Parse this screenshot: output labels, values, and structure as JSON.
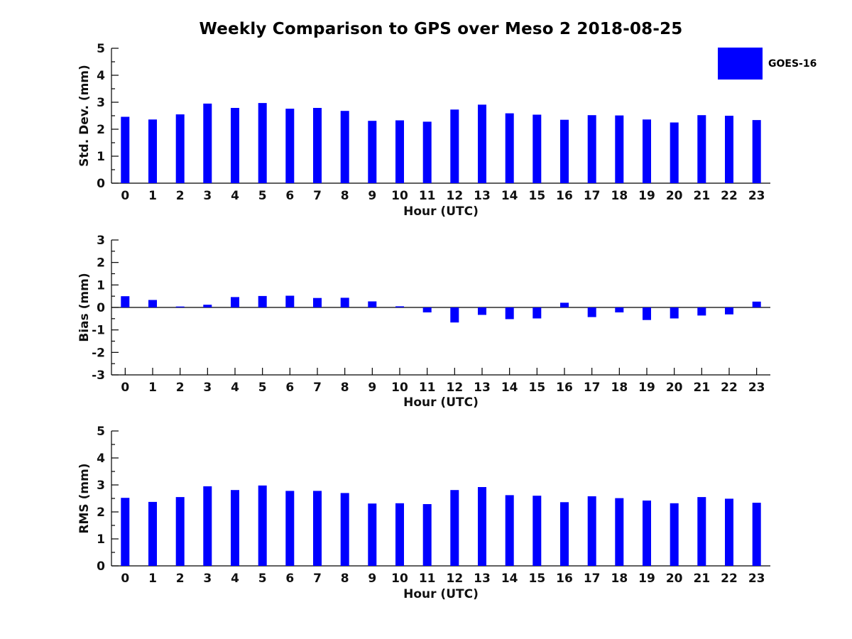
{
  "title": "Weekly Comparison to GPS over Meso 2 2018-08-25",
  "legend": {
    "label": "GOES-16",
    "swatch_color": "#0000ff",
    "position": "upper-right-outside"
  },
  "chart_data": [
    {
      "type": "bar",
      "panel": "top",
      "ylabel": "Std. Dev. (mm)",
      "xlabel": "Hour (UTC)",
      "categories": [
        "0",
        "1",
        "2",
        "3",
        "4",
        "5",
        "6",
        "7",
        "8",
        "9",
        "10",
        "11",
        "12",
        "13",
        "14",
        "15",
        "16",
        "17",
        "18",
        "19",
        "20",
        "21",
        "22",
        "23"
      ],
      "series": [
        {
          "name": "GOES-16",
          "values": [
            2.46,
            2.36,
            2.55,
            2.95,
            2.79,
            2.97,
            2.76,
            2.79,
            2.68,
            2.31,
            2.33,
            2.28,
            2.73,
            2.91,
            2.59,
            2.54,
            2.35,
            2.52,
            2.51,
            2.36,
            2.25,
            2.52,
            2.5,
            2.34
          ]
        }
      ],
      "ylim": [
        0,
        5
      ],
      "yticks": [
        0,
        1,
        2,
        3,
        4,
        5
      ],
      "minor_ytick_step": 0.5,
      "bar_color": "#0000ff",
      "grid": false
    },
    {
      "type": "bar",
      "panel": "middle",
      "ylabel": "Bias (mm)",
      "xlabel": "Hour (UTC)",
      "categories": [
        "0",
        "1",
        "2",
        "3",
        "4",
        "5",
        "6",
        "7",
        "8",
        "9",
        "10",
        "11",
        "12",
        "13",
        "14",
        "15",
        "16",
        "17",
        "18",
        "19",
        "20",
        "21",
        "22",
        "23"
      ],
      "series": [
        {
          "name": "GOES-16",
          "values": [
            0.5,
            0.33,
            0.04,
            0.12,
            0.46,
            0.51,
            0.52,
            0.42,
            0.43,
            0.27,
            0.05,
            -0.22,
            -0.67,
            -0.33,
            -0.52,
            -0.49,
            0.21,
            -0.43,
            -0.22,
            -0.56,
            -0.49,
            -0.36,
            -0.31,
            0.26
          ]
        }
      ],
      "ylim": [
        -3,
        3
      ],
      "yticks": [
        -3,
        -2,
        -1,
        0,
        1,
        2,
        3
      ],
      "minor_ytick_step": 0.5,
      "bar_color": "#0000ff",
      "grid": false
    },
    {
      "type": "bar",
      "panel": "bottom",
      "ylabel": "RMS (mm)",
      "xlabel": "Hour (UTC)",
      "categories": [
        "0",
        "1",
        "2",
        "3",
        "4",
        "5",
        "6",
        "7",
        "8",
        "9",
        "10",
        "11",
        "12",
        "13",
        "14",
        "15",
        "16",
        "17",
        "18",
        "19",
        "20",
        "21",
        "22",
        "23"
      ],
      "series": [
        {
          "name": "GOES-16",
          "values": [
            2.52,
            2.37,
            2.55,
            2.95,
            2.81,
            2.98,
            2.78,
            2.78,
            2.7,
            2.31,
            2.32,
            2.29,
            2.81,
            2.92,
            2.62,
            2.6,
            2.36,
            2.58,
            2.51,
            2.42,
            2.32,
            2.55,
            2.49,
            2.34
          ]
        }
      ],
      "ylim": [
        0,
        5
      ],
      "yticks": [
        0,
        1,
        2,
        3,
        4,
        5
      ],
      "minor_ytick_step": 0.5,
      "bar_color": "#0000ff",
      "grid": false
    }
  ]
}
